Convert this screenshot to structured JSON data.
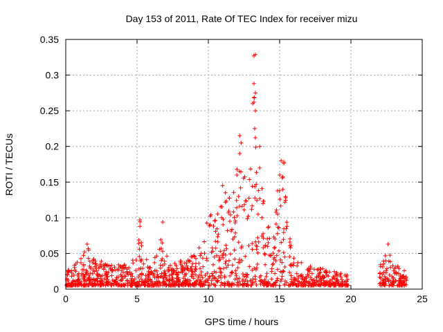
{
  "chart_data": {
    "type": "scatter",
    "title": "Day 153 of 2011, Rate Of TEC Index for receiver mizu",
    "xlabel": "GPS time / hours",
    "ylabel": "ROTI / TECUs",
    "xlim": [
      0,
      25
    ],
    "ylim": [
      0,
      0.35
    ],
    "x_ticks": [
      0,
      5,
      10,
      15,
      20,
      25
    ],
    "x_tick_labels": [
      "0",
      "5",
      "10",
      "15",
      "20",
      "25"
    ],
    "y_ticks": [
      0,
      0.05,
      0.1,
      0.15,
      0.2,
      0.25,
      0.3,
      0.35
    ],
    "y_tick_labels": [
      "0",
      "0.05",
      "0.1",
      "0.15",
      "0.2",
      "0.25",
      "0.3",
      "0.35"
    ],
    "grid": true,
    "marker": "+",
    "color": "#ff0000",
    "envelope": {
      "description": "approximate upper envelope of the scattered ROTI samples",
      "x": [
        0.0,
        0.5,
        1.0,
        1.5,
        2.0,
        2.5,
        3.0,
        3.5,
        4.0,
        4.5,
        5.0,
        5.2,
        5.5,
        6.0,
        6.5,
        6.8,
        7.0,
        7.5,
        8.0,
        8.5,
        9.0,
        9.5,
        10.0,
        10.5,
        11.0,
        11.5,
        12.0,
        12.3,
        12.6,
        13.0,
        13.2,
        13.5,
        14.0,
        14.5,
        15.0,
        15.3,
        15.6,
        16.0,
        16.5,
        17.0,
        17.5,
        18.0,
        18.5,
        19.0,
        19.7,
        22.0,
        22.5,
        22.7,
        23.0,
        23.5,
        23.9
      ],
      "y_max": [
        0.025,
        0.035,
        0.04,
        0.063,
        0.045,
        0.04,
        0.038,
        0.035,
        0.035,
        0.035,
        0.05,
        0.098,
        0.045,
        0.04,
        0.05,
        0.095,
        0.05,
        0.035,
        0.04,
        0.04,
        0.055,
        0.06,
        0.11,
        0.11,
        0.145,
        0.13,
        0.18,
        0.215,
        0.15,
        0.2,
        0.33,
        0.2,
        0.11,
        0.06,
        0.18,
        0.178,
        0.09,
        0.05,
        0.04,
        0.035,
        0.03,
        0.03,
        0.025,
        0.025,
        0.02,
        0.03,
        0.062,
        0.055,
        0.03,
        0.035,
        0.02
      ],
      "y_min": 0.005
    },
    "outliers": [
      {
        "x": 13.2,
        "y": 0.327
      },
      {
        "x": 13.3,
        "y": 0.329
      },
      {
        "x": 13.2,
        "y": 0.288
      },
      {
        "x": 13.3,
        "y": 0.275
      },
      {
        "x": 13.2,
        "y": 0.262
      },
      {
        "x": 13.3,
        "y": 0.25
      },
      {
        "x": 13.25,
        "y": 0.225
      },
      {
        "x": 12.2,
        "y": 0.215
      },
      {
        "x": 12.3,
        "y": 0.205
      },
      {
        "x": 13.6,
        "y": 0.2
      },
      {
        "x": 12.2,
        "y": 0.19
      },
      {
        "x": 15.1,
        "y": 0.18
      },
      {
        "x": 15.3,
        "y": 0.178
      },
      {
        "x": 13.6,
        "y": 0.17
      },
      {
        "x": 15.0,
        "y": 0.16
      },
      {
        "x": 12.0,
        "y": 0.16
      },
      {
        "x": 11.0,
        "y": 0.145
      },
      {
        "x": 11.2,
        "y": 0.135
      },
      {
        "x": 5.2,
        "y": 0.097
      },
      {
        "x": 5.2,
        "y": 0.088
      },
      {
        "x": 6.8,
        "y": 0.094
      },
      {
        "x": 1.5,
        "y": 0.063
      },
      {
        "x": 22.6,
        "y": 0.063
      }
    ],
    "point_count": 1400,
    "gap": [
      19.8,
      22.0
    ]
  }
}
